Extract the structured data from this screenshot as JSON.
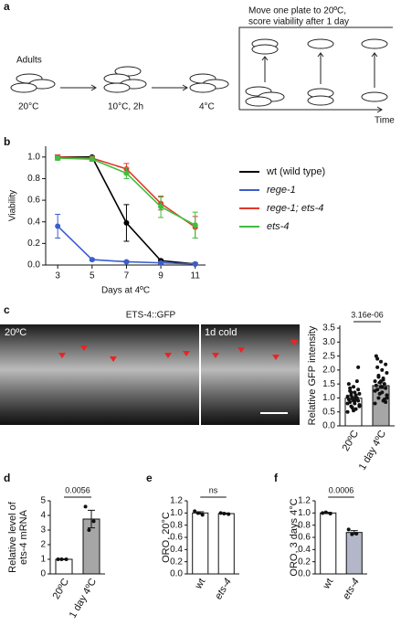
{
  "diagram": {
    "panel": "a",
    "adults": "Adults",
    "steps": [
      "20°C",
      "10°C, 2h",
      "4°C"
    ],
    "move_text": [
      "Move one plate to 20ºC,",
      "score viability after 1 day"
    ],
    "time": "Time"
  },
  "images": {
    "panel": "c",
    "title": "ETS-4::GFP",
    "labels": [
      "20ºC",
      "1d cold"
    ]
  },
  "chart_data": [
    {
      "type": "line",
      "panel": "b",
      "x_label": "Days at 4ºC",
      "y_label": "Viability",
      "x": [
        3,
        5,
        7,
        9,
        11
      ],
      "xlim": [
        2.3,
        11.6
      ],
      "xticks": [
        3,
        5,
        7,
        9,
        11
      ],
      "ylim": [
        0,
        1.1
      ],
      "yticks": [
        {
          "value": 0,
          "label": "0.0"
        },
        0.2,
        0.4,
        0.6,
        0.8,
        {
          "value": 1,
          "label": "1.0"
        }
      ],
      "legend": "right",
      "series": [
        {
          "name": "wt (wild type)",
          "color": "#000000",
          "italic": false,
          "values": [
            1.0,
            1.0,
            0.39,
            0.04,
            0.01
          ],
          "errors": [
            0.02,
            0.01,
            0.17,
            0.01,
            0.01
          ]
        },
        {
          "name": "rege-1",
          "color": "#3a5fcd",
          "italic": true,
          "values": [
            0.36,
            0.05,
            0.03,
            0.02,
            0.01
          ],
          "errors": [
            0.11,
            0.01,
            0.01,
            0.01,
            0.01
          ]
        },
        {
          "name": "rege-1; ets-4",
          "color": "#e03a2a",
          "italic": true,
          "values": [
            1.0,
            0.99,
            0.89,
            0.57,
            0.35
          ],
          "errors": [
            0.02,
            0.02,
            0.05,
            0.06,
            0.1
          ]
        },
        {
          "name": "ets-4",
          "color": "#3fbf3f",
          "italic": true,
          "values": [
            0.99,
            0.98,
            0.85,
            0.54,
            0.37
          ],
          "errors": [
            0.02,
            0.02,
            0.05,
            0.1,
            0.12
          ]
        }
      ]
    },
    {
      "type": "bar",
      "y_label": [
        "Relative GFP intensity"
      ],
      "categories": [
        "20ºC",
        "1 day 4ºC"
      ],
      "values": [
        0.99,
        1.44
      ],
      "errors": [
        0.06,
        0.1
      ],
      "colors": [
        "#ffffff",
        "#a6a6a6"
      ],
      "points": [
        [
          0.5,
          0.6,
          0.7,
          0.75,
          0.8,
          0.85,
          0.9,
          0.9,
          0.95,
          1.0,
          1.0,
          1.05,
          1.1,
          1.1,
          1.15,
          1.2,
          1.25,
          1.3,
          1.4,
          1.5,
          1.6,
          0.65,
          0.8,
          1.0,
          1.2,
          0.7,
          0.9,
          1.35,
          2.1,
          0.55
        ],
        [
          0.8,
          0.9,
          1.0,
          1.1,
          1.2,
          1.3,
          1.35,
          1.4,
          1.45,
          1.5,
          1.55,
          1.6,
          1.7,
          1.8,
          1.9,
          2.0,
          2.1,
          2.2,
          2.3,
          2.5,
          0.95,
          1.15,
          1.25,
          1.65,
          1.75,
          1.0,
          1.4,
          2.4,
          0.85,
          1.6
        ]
      ],
      "ylim": [
        0,
        3.6
      ],
      "yticks": [
        {
          "value": 0,
          "label": "0.0"
        },
        0.5,
        {
          "value": 1,
          "label": "1.0"
        },
        1.5,
        {
          "value": 2,
          "label": "2.0"
        },
        2.5,
        {
          "value": 3,
          "label": "3.0"
        },
        3.5
      ],
      "significance": "3.16e-06"
    },
    {
      "type": "bar",
      "panel": "d",
      "y_label": [
        "Relative level of",
        "ets-4 mRNA"
      ],
      "categories": [
        "20ºC",
        "1 day 4ºC"
      ],
      "values": [
        1.0,
        3.75
      ],
      "errors": [
        0.03,
        0.6
      ],
      "colors": [
        "#ffffff",
        "#a6a6a6"
      ],
      "points": [
        [
          1.0,
          1.0,
          1.0
        ],
        [
          4.6,
          3.6,
          3.0
        ]
      ],
      "ylim": [
        0,
        5
      ],
      "yticks": [
        0,
        1,
        2,
        3,
        4,
        5
      ],
      "significance": "0.0056"
    },
    {
      "type": "bar",
      "panel": "e",
      "y_label": [
        "ORO, 20°C"
      ],
      "categories": [
        "wt",
        "ets-4"
      ],
      "values": [
        1.0,
        0.99
      ],
      "errors": [
        0.02,
        0.01
      ],
      "colors": [
        "#ffffff",
        "#ffffff"
      ],
      "points": [
        [
          1.03,
          0.97,
          1.0
        ],
        [
          1.0,
          0.98,
          0.99
        ]
      ],
      "ylim": [
        0,
        1.2
      ],
      "yticks": [
        {
          "value": 0,
          "label": "0.0"
        },
        0.2,
        0.4,
        0.6,
        0.8,
        {
          "value": 1,
          "label": "1.0"
        },
        1.2
      ],
      "significance": "ns"
    },
    {
      "type": "bar",
      "panel": "f",
      "y_label": [
        "ORO, 3 days 4°C"
      ],
      "categories": [
        "wt",
        "ets-4"
      ],
      "values": [
        1.0,
        0.68
      ],
      "errors": [
        0.01,
        0.03
      ],
      "colors": [
        "#ffffff",
        "#b3b7c9"
      ],
      "points": [
        [
          1.0,
          0.99,
          1.01
        ],
        [
          0.73,
          0.66,
          0.65
        ]
      ],
      "ylim": [
        0,
        1.2
      ],
      "yticks": [
        {
          "value": 0,
          "label": "0.0"
        },
        0.2,
        0.4,
        0.6,
        0.8,
        {
          "value": 1,
          "label": "1.0"
        },
        1.2
      ],
      "significance": "0.0006"
    }
  ]
}
